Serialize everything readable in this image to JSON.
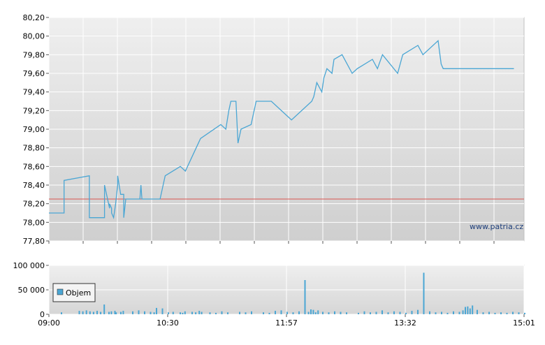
{
  "watermark": "www.patria.cz",
  "chart_data": [
    {
      "type": "line",
      "ylim": [
        77.8,
        80.2
      ],
      "y_ticks": [
        "77,80",
        "78,00",
        "78,20",
        "78,40",
        "78,60",
        "78,80",
        "79,00",
        "79,20",
        "79,40",
        "79,60",
        "79,80",
        "80,00",
        "80,20"
      ],
      "reference_line": 78.25,
      "colors": {
        "line": "#4aa6d4",
        "reference": "#d9534f",
        "grid": "#ffffff"
      },
      "series": [
        {
          "x_min": [
            0,
            15,
            15,
            40,
            40,
            55,
            55,
            60,
            60,
            62,
            62,
            64,
            64,
            66,
            66,
            68,
            68,
            71,
            71,
            72,
            72,
            74,
            74,
            76,
            76,
            80,
            80,
            90,
            90,
            91,
            91,
            92,
            92,
            95,
            95,
            110,
            110,
            115,
            115,
            130,
            130,
            135,
            135,
            150,
            150,
            170,
            170,
            175,
            175,
            178,
            178,
            180,
            180,
            185,
            185,
            187,
            187,
            190,
            190,
            200,
            200,
            205,
            205,
            210,
            210,
            220,
            220,
            240,
            240,
            260,
            260,
            262,
            262,
            265,
            265,
            270,
            270,
            272,
            272,
            275,
            275,
            280,
            280,
            282,
            282,
            290,
            290,
            300,
            300,
            305,
            305,
            320,
            320,
            325,
            325,
            330,
            330,
            345,
            345,
            350,
            350,
            365,
            365,
            370,
            370,
            385,
            385,
            388,
            388,
            390,
            390,
            395,
            395,
            397,
            397,
            400,
            400,
            402,
            402,
            405,
            405,
            410,
            410,
            415,
            415,
            420,
            420,
            425,
            425,
            430,
            430,
            435,
            435,
            440,
            440,
            445,
            445,
            450,
            450,
            460,
            460,
            470
          ],
          "y": [
            78.1,
            78.1,
            78.45,
            78.5,
            78.05,
            78.05,
            78.4,
            78.15,
            78.2,
            78.15,
            78.1,
            78.05,
            78.05,
            78.2,
            78.2,
            78.4,
            78.5,
            78.3,
            78.3,
            78.3,
            78.3,
            78.3,
            78.05,
            78.25,
            78.25,
            78.25,
            78.25,
            78.25,
            78.25,
            78.4,
            78.4,
            78.25,
            78.25,
            78.25,
            78.25,
            78.25,
            78.25,
            78.5,
            78.5,
            78.6,
            78.6,
            78.55,
            78.55,
            78.9,
            78.9,
            79.05,
            79.05,
            79.0,
            79.0,
            79.2,
            79.2,
            79.3,
            79.3,
            79.3,
            79.3,
            78.85,
            78.85,
            79.0,
            79.0,
            79.05,
            79.05,
            79.3,
            79.3,
            79.3,
            79.3,
            79.3,
            79.3,
            79.1,
            79.1,
            79.3,
            79.3,
            79.35,
            79.35,
            79.5,
            79.5,
            79.4,
            79.4,
            79.55,
            79.55,
            79.65,
            79.65,
            79.6,
            79.6,
            79.75,
            79.75,
            79.8,
            79.8,
            79.6,
            79.6,
            79.65,
            79.65,
            79.75,
            79.75,
            79.65,
            79.65,
            79.8,
            79.8,
            79.6,
            79.6,
            79.8,
            79.8,
            79.9,
            79.9,
            79.8,
            79.8,
            79.95,
            79.95,
            79.7,
            79.7,
            79.65,
            79.65,
            79.65,
            79.65,
            79.65,
            79.65,
            79.65,
            79.65,
            79.65,
            79.65,
            79.65,
            79.65,
            79.65,
            79.65,
            79.65,
            79.65,
            79.65,
            79.65,
            79.65,
            79.65,
            79.65,
            79.65,
            79.65,
            79.65,
            79.65,
            79.65,
            79.65,
            79.65,
            79.65,
            79.65,
            79.65,
            79.65
          ]
        }
      ]
    },
    {
      "type": "bar",
      "ylim": [
        0,
        100000
      ],
      "y_ticks": [
        "0",
        "50 000",
        "100 000"
      ],
      "x_ticks": [
        "09:00",
        "10:30",
        "11:57",
        "13:32",
        "15:01"
      ],
      "legend": "Objem",
      "colors": {
        "bar": "#4aa6d4",
        "grid": "#ffffff"
      },
      "series": [
        {
          "x_min": [
            10,
            25,
            28,
            31,
            34,
            37,
            40,
            43,
            46,
            50,
            52,
            55,
            56,
            60,
            62,
            70,
            75,
            80,
            85,
            88,
            90,
            95,
            100,
            104,
            110,
            112,
            114,
            120,
            123,
            126,
            128,
            135,
            140,
            145,
            150,
            160,
            165,
            170,
            180,
            185,
            190,
            195,
            200,
            205,
            210,
            215,
            218,
            220,
            222,
            224,
            226,
            230,
            235,
            240,
            245,
            250,
            260,
            265,
            270,
            275,
            280,
            285,
            290,
            295,
            300,
            305,
            310,
            315,
            320,
            325,
            330,
            335,
            340,
            345,
            348,
            350,
            352,
            354,
            356,
            360,
            365,
            370,
            375,
            380,
            385,
            390,
            395,
            400
          ],
          "values": [
            4000,
            7000,
            6000,
            8000,
            6000,
            5000,
            7000,
            5000,
            20000,
            5000,
            6000,
            7000,
            4000,
            5000,
            7000,
            6000,
            8000,
            6000,
            5000,
            4000,
            13000,
            12000,
            4000,
            5000,
            4000,
            3000,
            6000,
            5000,
            4000,
            7000,
            5000,
            4000,
            3000,
            6000,
            4000,
            5000,
            4000,
            6000,
            4000,
            3000,
            7000,
            8000,
            5000,
            4000,
            6000,
            70000,
            5000,
            10000,
            9000,
            4000,
            8000,
            5000,
            4000,
            6000,
            5000,
            4000,
            3000,
            6000,
            4000,
            5000,
            8000,
            4000,
            6000,
            5000,
            3000,
            7000,
            9000,
            85000,
            6000,
            4000,
            5000,
            3000,
            6000,
            5000,
            8000,
            15000,
            16000,
            12000,
            18000,
            9000,
            4000,
            5000,
            3000,
            4000,
            3000,
            5000,
            4000,
            3000
          ]
        }
      ]
    }
  ]
}
